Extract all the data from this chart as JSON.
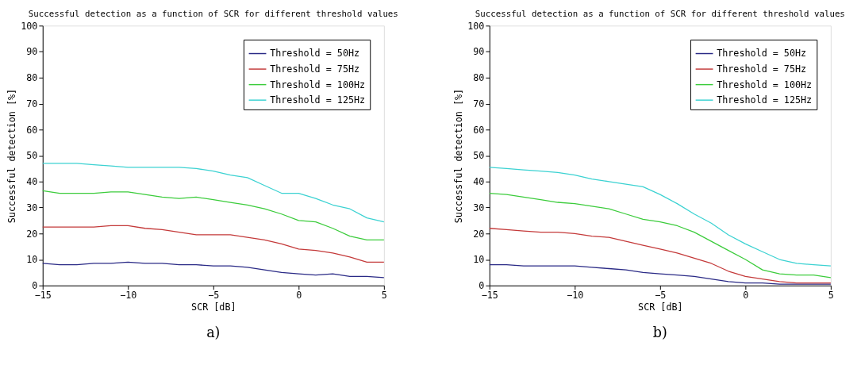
{
  "chart_data": [
    {
      "type": "line",
      "title": "Successful detection as a function of SCR for different threshold values",
      "xlabel": "SCR [dB]",
      "ylabel": "Successful detection [%]",
      "annotations": [
        "a)"
      ],
      "x": [
        -15,
        -14,
        -13,
        -12,
        -11,
        -10,
        -9,
        -8,
        -7,
        -6,
        -5,
        -4,
        -3,
        -2,
        -1,
        0,
        1,
        2,
        3,
        4,
        5
      ],
      "xlim": [
        -15,
        5
      ],
      "xticks": [
        -15,
        -10,
        -5,
        0,
        5
      ],
      "ylim": [
        0,
        100
      ],
      "yticks": [
        0,
        10,
        20,
        30,
        40,
        50,
        60,
        70,
        80,
        90,
        100
      ],
      "grid": false,
      "legend": "top right",
      "series": [
        {
          "name": "Threshold = 50Hz",
          "color": "#2a2a86",
          "values": [
            8.5,
            8,
            8,
            8.5,
            8.5,
            9,
            8.5,
            8.5,
            8,
            8,
            7.5,
            7.5,
            7,
            6,
            5,
            4.5,
            4,
            4.5,
            3.5,
            3.5,
            3
          ]
        },
        {
          "name": "Threshold = 75Hz",
          "color": "#c43a3a",
          "values": [
            22.5,
            22.5,
            22.5,
            22.5,
            23,
            23,
            22,
            21.5,
            20.5,
            19.5,
            19.5,
            19.5,
            18.5,
            17.5,
            16,
            14,
            13.5,
            12.5,
            11,
            9,
            9
          ]
        },
        {
          "name": "Threshold = 100Hz",
          "color": "#3ccc3c",
          "values": [
            36.5,
            35.5,
            35.5,
            35.5,
            36,
            36,
            35,
            34,
            33.5,
            34,
            33,
            32,
            31,
            29.5,
            27.5,
            25,
            24.5,
            22,
            19,
            17.5,
            17.5
          ]
        },
        {
          "name": "Threshold = 125Hz",
          "color": "#3cd2d2",
          "values": [
            47,
            47,
            47,
            46.5,
            46,
            45.5,
            45.5,
            45.5,
            45.5,
            45,
            44,
            42.5,
            41.5,
            38.5,
            35.5,
            35.5,
            33.5,
            31,
            29.5,
            26,
            24.5
          ]
        }
      ]
    },
    {
      "type": "line",
      "title": "Successful detection as a function of SCR for different threshold values",
      "xlabel": "SCR [dB]",
      "ylabel": "Successful detection [%]",
      "annotations": [
        "b)"
      ],
      "x": [
        -15,
        -14,
        -13,
        -12,
        -11,
        -10,
        -9,
        -8,
        -7,
        -6,
        -5,
        -4,
        -3,
        -2,
        -1,
        0,
        1,
        2,
        3,
        4,
        5
      ],
      "xlim": [
        -15,
        5
      ],
      "xticks": [
        -15,
        -10,
        -5,
        0,
        5
      ],
      "ylim": [
        0,
        100
      ],
      "yticks": [
        0,
        10,
        20,
        30,
        40,
        50,
        60,
        70,
        80,
        90,
        100
      ],
      "grid": false,
      "legend": "top right",
      "series": [
        {
          "name": "Threshold = 50Hz",
          "color": "#2a2a86",
          "values": [
            8,
            8,
            7.5,
            7.5,
            7.5,
            7.5,
            7,
            6.5,
            6,
            5,
            4.5,
            4,
            3.5,
            2.5,
            1.5,
            1,
            1,
            0.5,
            0.5,
            0.5,
            0.5
          ]
        },
        {
          "name": "Threshold = 75Hz",
          "color": "#c43a3a",
          "values": [
            22,
            21.5,
            21,
            20.5,
            20.5,
            20,
            19,
            18.5,
            17,
            15.5,
            14,
            12.5,
            10.5,
            8.5,
            5.5,
            3.5,
            2.5,
            1.5,
            1,
            1,
            1
          ]
        },
        {
          "name": "Threshold = 100Hz",
          "color": "#3ccc3c",
          "values": [
            35.5,
            35,
            34,
            33,
            32,
            31.5,
            30.5,
            29.5,
            27.5,
            25.5,
            24.5,
            23,
            20.5,
            17,
            13.5,
            10,
            6,
            4.5,
            4,
            4,
            3
          ]
        },
        {
          "name": "Threshold = 125Hz",
          "color": "#3cd2d2",
          "values": [
            45.5,
            45,
            44.5,
            44,
            43.5,
            42.5,
            41,
            40,
            39,
            38,
            35,
            31.5,
            27.5,
            24,
            19.5,
            16,
            13,
            10,
            8.5,
            8,
            7.5
          ]
        }
      ]
    }
  ]
}
